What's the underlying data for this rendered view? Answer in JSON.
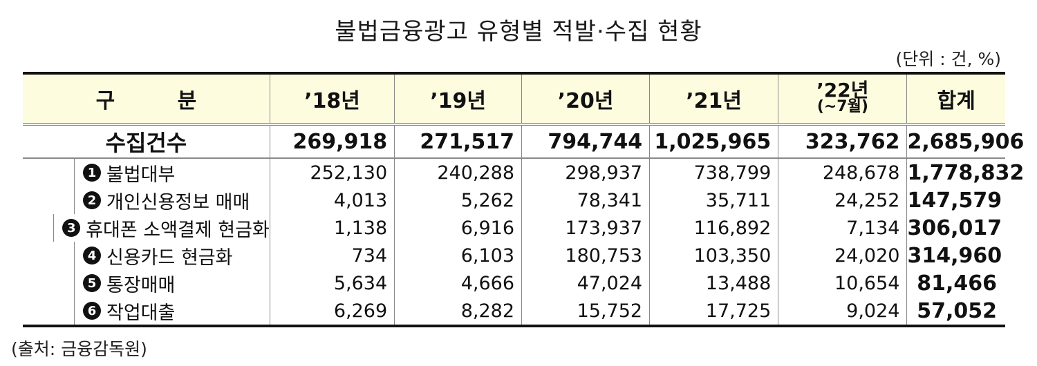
{
  "title": "불법금융광고 유형별 적발·수집 현황",
  "unit": "(단위 : 건, %)",
  "source": "(출처: 금융감독원)",
  "table": {
    "header": {
      "category": "구 분",
      "y18": "’18년",
      "y19": "’19년",
      "y20": "’20년",
      "y21": "’21년",
      "y22": "’22년",
      "y22_sub": "(~7월)",
      "total": "합계"
    },
    "total_row": {
      "label": "수집건수",
      "values": [
        "269,918",
        "271,517",
        "794,744",
        "1,025,965",
        "323,762",
        "2,685,906"
      ]
    },
    "rows": [
      {
        "badge": "1",
        "label": "불법대부",
        "values": [
          "252,130",
          "240,288",
          "298,937",
          "738,799",
          "248,678",
          "1,778,832"
        ]
      },
      {
        "badge": "2",
        "label": "개인신용정보 매매",
        "values": [
          "4,013",
          "5,262",
          "78,341",
          "35,711",
          "24,252",
          "147,579"
        ]
      },
      {
        "badge": "3",
        "label": "휴대폰 소액결제 현금화",
        "values": [
          "1,138",
          "6,916",
          "173,937",
          "116,892",
          "7,134",
          "306,017"
        ]
      },
      {
        "badge": "4",
        "label": "신용카드 현금화",
        "values": [
          "734",
          "6,103",
          "180,753",
          "103,350",
          "24,020",
          "314,960"
        ]
      },
      {
        "badge": "5",
        "label": "통장매매",
        "values": [
          "5,634",
          "4,666",
          "47,024",
          "13,488",
          "10,654",
          "81,466"
        ]
      },
      {
        "badge": "6",
        "label": "작업대출",
        "values": [
          "6,269",
          "8,282",
          "15,752",
          "17,725",
          "9,024",
          "57,052"
        ]
      }
    ]
  },
  "chart_data": {
    "type": "table",
    "title": "불법금융광고 유형별 적발·수집 현황",
    "unit": "건",
    "columns": [
      "’18년",
      "’19년",
      "’20년",
      "’21년",
      "’22년(~7월)",
      "합계"
    ],
    "series": [
      {
        "name": "수집건수",
        "values": [
          269918,
          271517,
          794744,
          1025965,
          323762,
          2685906
        ]
      },
      {
        "name": "불법대부",
        "values": [
          252130,
          240288,
          298937,
          738799,
          248678,
          1778832
        ]
      },
      {
        "name": "개인신용정보 매매",
        "values": [
          4013,
          5262,
          78341,
          35711,
          24252,
          147579
        ]
      },
      {
        "name": "휴대폰 소액결제 현금화",
        "values": [
          1138,
          6916,
          173937,
          116892,
          7134,
          306017
        ]
      },
      {
        "name": "신용카드 현금화",
        "values": [
          734,
          6103,
          180753,
          103350,
          24020,
          314960
        ]
      },
      {
        "name": "통장매매",
        "values": [
          5634,
          4666,
          47024,
          13488,
          10654,
          81466
        ]
      },
      {
        "name": "작업대출",
        "values": [
          6269,
          8282,
          15752,
          17725,
          9024,
          57052
        ]
      }
    ],
    "source": "금융감독원"
  }
}
